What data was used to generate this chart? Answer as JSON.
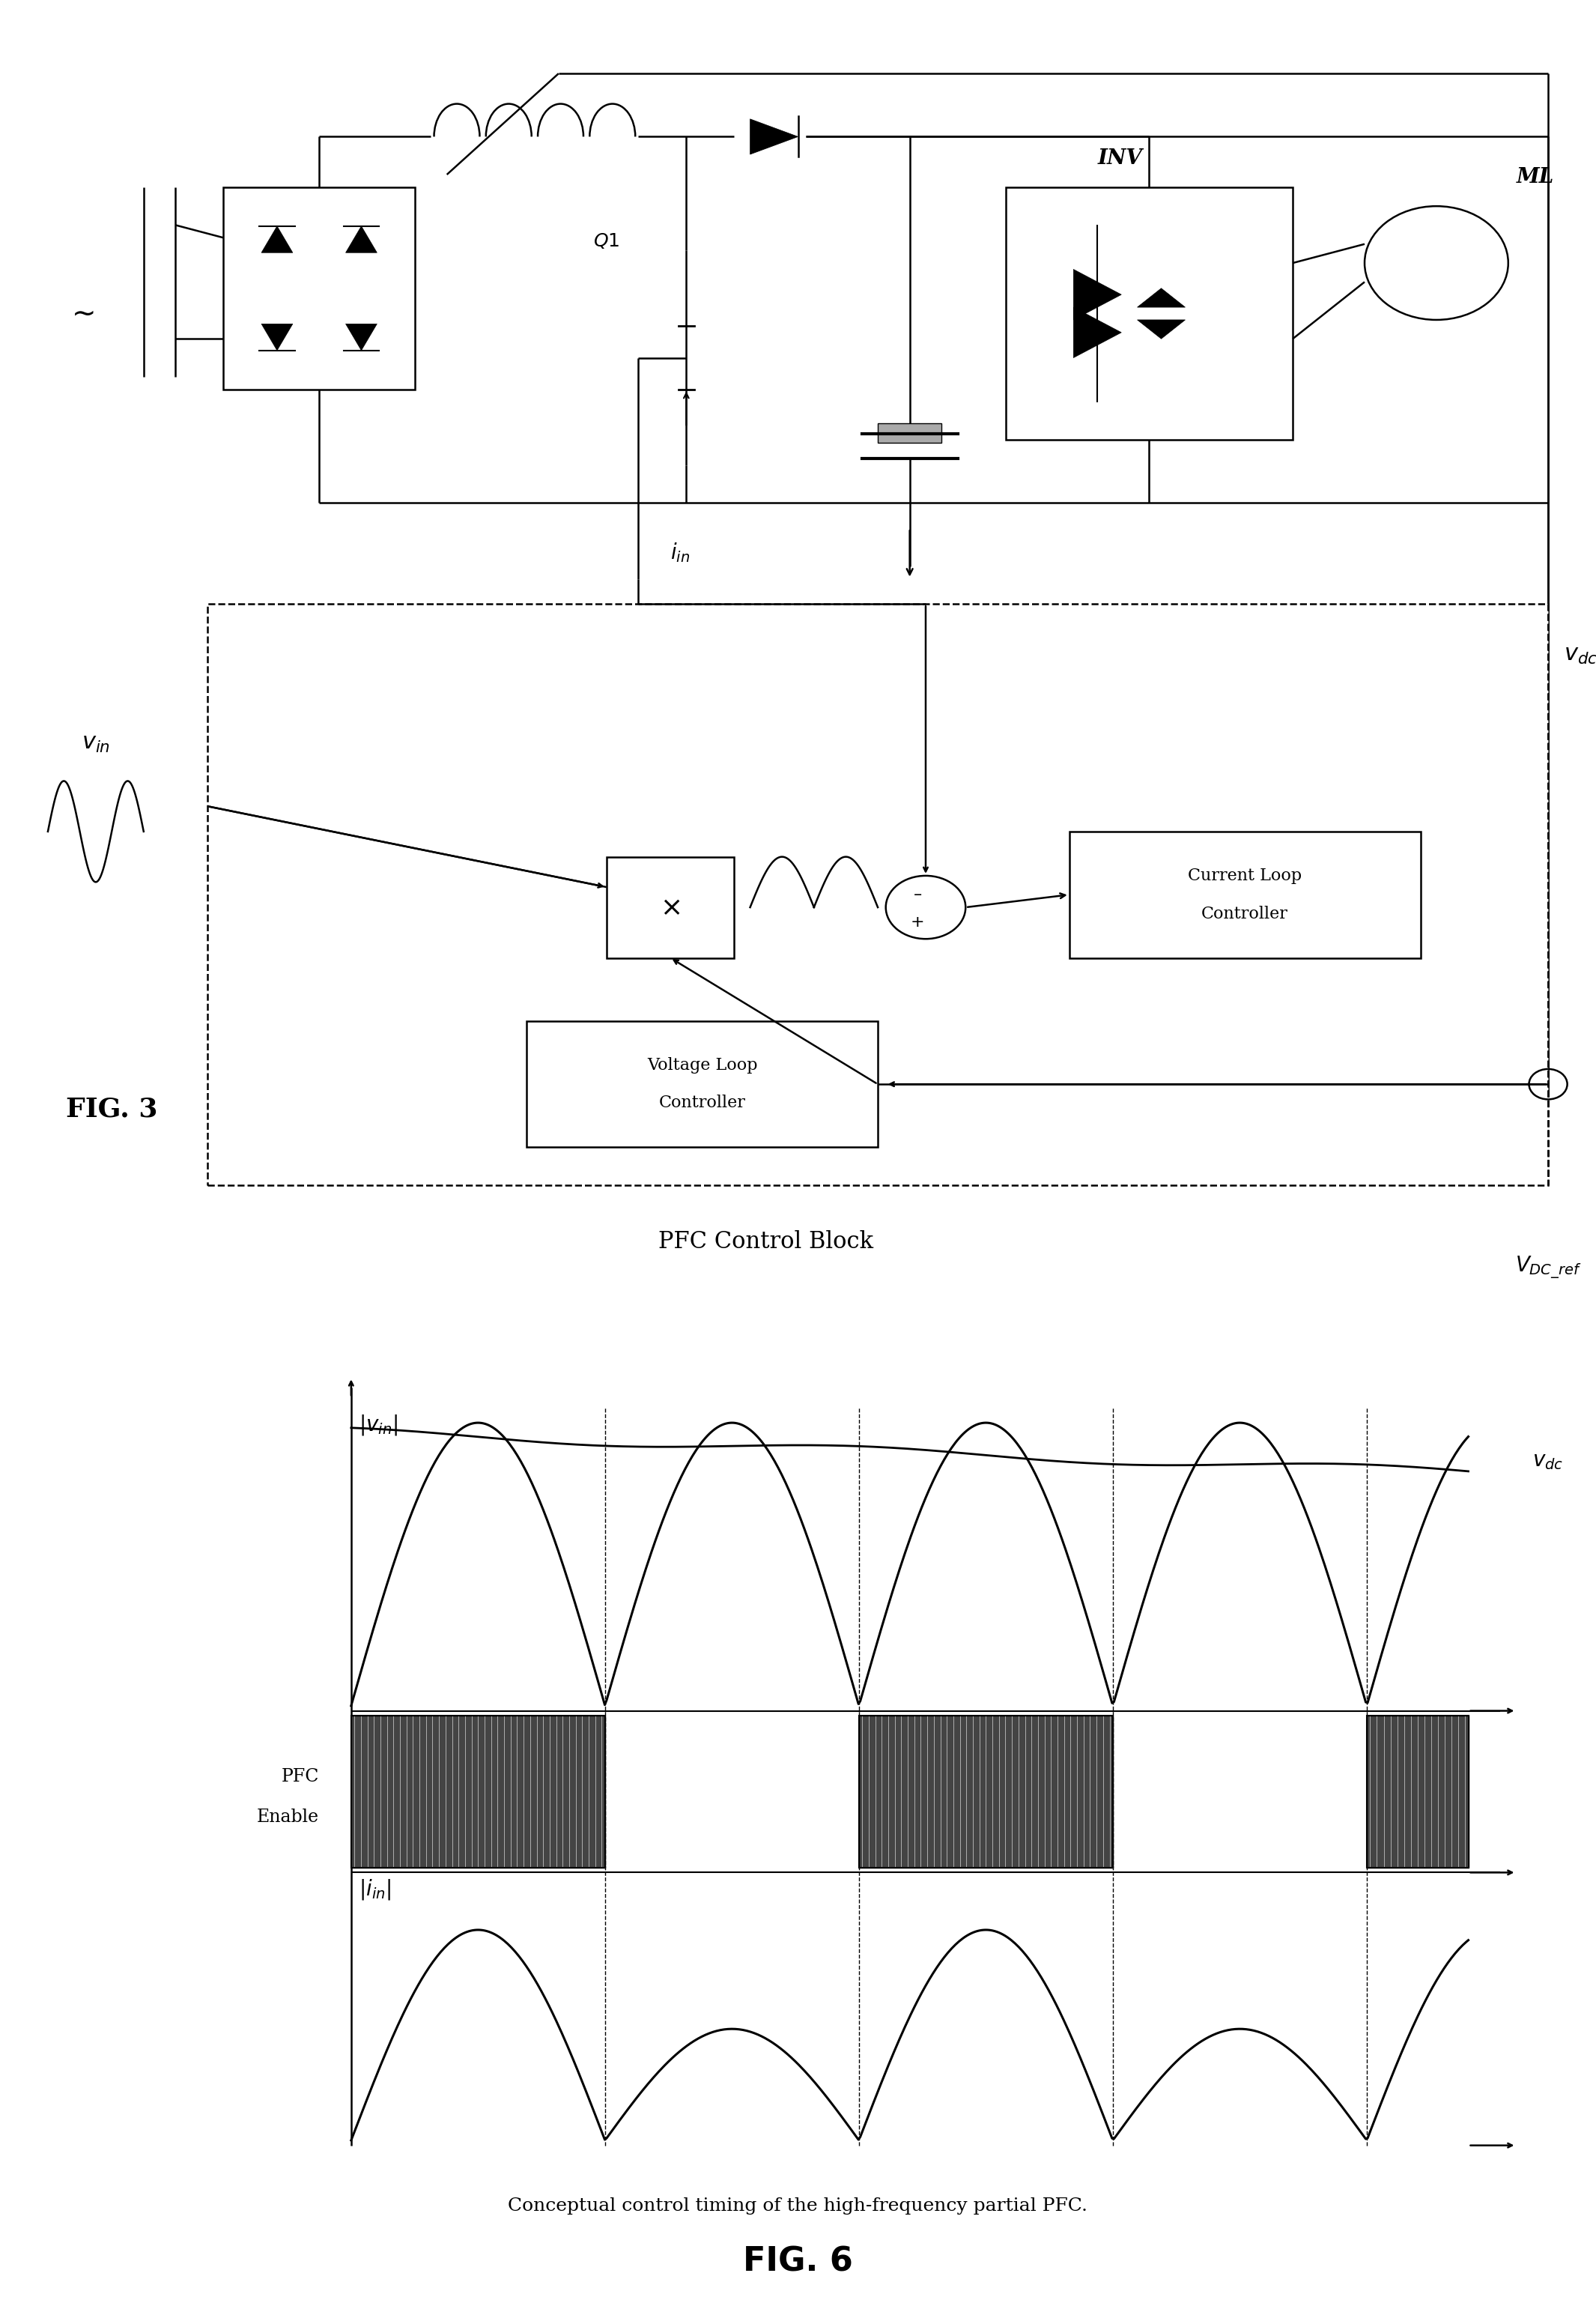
{
  "fig_width": 21.31,
  "fig_height": 30.66,
  "bg_color": "#ffffff",
  "fig3_label": "FIG. 3",
  "fig6_label": "FIG. 6",
  "pfc_block_label": "PFC Control Block",
  "caption": "Conceptual control timing of the high-frequency partial PFC."
}
